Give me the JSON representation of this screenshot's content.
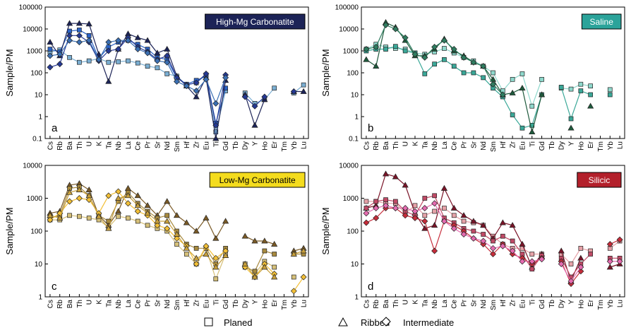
{
  "legend": {
    "items": [
      {
        "label": "Planed",
        "marker": "square"
      },
      {
        "label": "Ribbed",
        "marker": "triangle"
      },
      {
        "label": "Intermediate",
        "marker": "diamond"
      }
    ]
  },
  "chart_data": [
    {
      "type": "line",
      "title": "High-Mg Carbonatite",
      "title_bg": "#1c2357",
      "title_fg": "#ffffff",
      "panel_letter": "a",
      "ylabel": "Sample/PM",
      "yscale": "log",
      "ylim": [
        0.1,
        100000
      ],
      "yticks": [
        "0.1",
        "1",
        "10",
        "100",
        "1000",
        "10000",
        "100000"
      ],
      "categories": [
        "Cs",
        "Rb",
        "Ba",
        "Th",
        "U",
        "K",
        "Ta",
        "Nb",
        "La",
        "Ce",
        "Pr",
        "Sr",
        "Nd",
        "Sm",
        "Hf",
        "Zr",
        "Eu",
        "Ti",
        "Gd",
        "Tb",
        "Dy",
        "Y",
        "Ho",
        "Er",
        "Tm",
        "Yb",
        "Lu"
      ],
      "series": [
        {
          "marker": "square",
          "color": "#7aaed2",
          "values": [
            900,
            1100,
            500,
            300,
            350,
            450,
            300,
            320,
            350,
            280,
            200,
            170,
            90,
            70,
            28,
            35,
            80,
            0.2,
            15,
            null,
            12,
            4,
            6,
            20,
            null,
            12,
            28
          ]
        },
        {
          "marker": "square",
          "color": "#2b63c6",
          "values": [
            1200,
            900,
            8000,
            9000,
            5000,
            450,
            1500,
            2500,
            3000,
            2000,
            1200,
            500,
            400,
            60,
            30,
            45,
            70,
            0.5,
            20,
            null,
            null,
            null,
            null,
            null,
            null,
            null,
            null
          ]
        },
        {
          "marker": "triangle",
          "color": "#1c2357",
          "values": [
            2500,
            600,
            18000,
            18000,
            17000,
            700,
            40,
            1200,
            6000,
            4000,
            3000,
            800,
            1200,
            70,
            25,
            8,
            60,
            0.1,
            45,
            null,
            10,
            0.4,
            6,
            null,
            null,
            14,
            14
          ]
        },
        {
          "marker": "diamond",
          "color": "#253994",
          "values": [
            180,
            250,
            5000,
            5000,
            2500,
            350,
            1000,
            1200,
            4000,
            1500,
            900,
            400,
            600,
            60,
            28,
            35,
            90,
            0.4,
            80,
            null,
            8,
            3,
            8,
            null,
            null,
            14,
            null
          ]
        },
        {
          "marker": "diamond",
          "color": "#3a6fb3",
          "values": [
            600,
            700,
            3000,
            2500,
            3000,
            400,
            2500,
            3000,
            3000,
            1200,
            800,
            350,
            300,
            40,
            25,
            15,
            50,
            4,
            60,
            null,
            null,
            null,
            null,
            null,
            null,
            null,
            null
          ]
        }
      ]
    },
    {
      "type": "line",
      "title": "Saline",
      "title_bg": "#2ba39a",
      "title_fg": "#ffffff",
      "panel_letter": "b",
      "ylabel": "Sample/PM",
      "yscale": "log",
      "ylim": [
        0.1,
        100000
      ],
      "yticks": [
        "0.1",
        "1",
        "10",
        "100",
        "1000",
        "10000",
        "100000"
      ],
      "categories": [
        "Cs",
        "Rb",
        "Ba",
        "Th",
        "U",
        "K",
        "Ta",
        "Nb",
        "La",
        "Ce",
        "Pr",
        "Sr",
        "Nd",
        "Sm",
        "Hf",
        "Zr",
        "Eu",
        "Ti",
        "Gd",
        "Tb",
        "Dy",
        "Y",
        "Ho",
        "Er",
        "Tm",
        "Yb",
        "Lu"
      ],
      "series": [
        {
          "marker": "square",
          "color": "#8ed8cc",
          "values": [
            1200,
            2000,
            1500,
            1300,
            1200,
            800,
            700,
            900,
            1300,
            800,
            500,
            350,
            200,
            100,
            15,
            50,
            90,
            3,
            50,
            null,
            20,
            18,
            30,
            25,
            null,
            17,
            null
          ]
        },
        {
          "marker": "square",
          "color": "#3aa898",
          "values": [
            1000,
            1200,
            1200,
            1600,
            1000,
            800,
            90,
            250,
            400,
            200,
            100,
            100,
            60,
            20,
            8,
            1.2,
            0.3,
            0.4,
            10,
            null,
            22,
            0.8,
            15,
            10,
            null,
            10,
            null
          ]
        },
        {
          "marker": "triangle",
          "color": "#1e5a3c",
          "values": [
            400,
            200,
            20000,
            12000,
            3000,
            600,
            600,
            1200,
            3500,
            1000,
            600,
            300,
            200,
            50,
            10,
            12,
            20,
            0.2,
            10,
            null,
            null,
            0.3,
            null,
            3,
            null,
            null,
            null
          ]
        },
        {
          "marker": "diamond",
          "color": "#2f7d60",
          "values": [
            1200,
            1500,
            15000,
            10000,
            4000,
            700,
            500,
            1500,
            3000,
            1200,
            500,
            300,
            200,
            30,
            10,
            null,
            null,
            null,
            null,
            null,
            null,
            null,
            null,
            null,
            null,
            null,
            null
          ]
        }
      ]
    },
    {
      "type": "line",
      "title": "Low-Mg Carbonatite",
      "title_bg": "#f4dc1e",
      "title_fg": "#000000",
      "panel_letter": "c",
      "ylabel": "Sample/PM",
      "yscale": "log",
      "ylim": [
        1,
        10000
      ],
      "yticks": [
        "1",
        "10",
        "100",
        "1000",
        "10000"
      ],
      "categories": [
        "Cs",
        "Rb",
        "Ba",
        "Th",
        "U",
        "K",
        "Ta",
        "Nb",
        "La",
        "Ce",
        "Pr",
        "Sr",
        "Nd",
        "Sm",
        "Hf",
        "Zr",
        "Eu",
        "Ti",
        "Gd",
        "Tb",
        "Dy",
        "Y",
        "Ho",
        "Er",
        "Tm",
        "Yb",
        "Lu"
      ],
      "series": [
        {
          "marker": "square",
          "color": "#d6c079",
          "values": [
            220,
            220,
            300,
            280,
            250,
            220,
            130,
            280,
            250,
            200,
            150,
            120,
            100,
            40,
            20,
            10,
            30,
            3.5,
            20,
            null,
            10,
            5,
            12,
            8,
            null,
            4,
            null
          ]
        },
        {
          "marker": "triangle",
          "color": "#7a5a26",
          "values": [
            350,
            400,
            2500,
            2800,
            1800,
            300,
            150,
            400,
            2000,
            1200,
            600,
            300,
            800,
            300,
            180,
            100,
            250,
            60,
            200,
            null,
            70,
            50,
            50,
            40,
            null,
            25,
            30
          ]
        },
        {
          "marker": "square",
          "color": "#a88a3e",
          "values": [
            250,
            300,
            2000,
            2200,
            1200,
            300,
            200,
            800,
            1500,
            700,
            400,
            250,
            300,
            100,
            40,
            30,
            30,
            10,
            30,
            null,
            8,
            6,
            25,
            20,
            null,
            20,
            20
          ]
        },
        {
          "marker": "diamond",
          "color": "#f2bf36",
          "values": [
            220,
            350,
            800,
            1000,
            900,
            350,
            1200,
            1600,
            700,
            400,
            300,
            150,
            120,
            60,
            35,
            10,
            35,
            15,
            25,
            null,
            8,
            4,
            10,
            5,
            null,
            1.5,
            4
          ]
        },
        {
          "marker": "triangle",
          "color": "#c8a03c",
          "values": [
            300,
            250,
            1500,
            1800,
            1200,
            280,
            120,
            1000,
            1200,
            600,
            350,
            200,
            200,
            80,
            30,
            15,
            20,
            8,
            18,
            null,
            10,
            4,
            8,
            4,
            null,
            20,
            25
          ]
        }
      ]
    },
    {
      "type": "line",
      "title": "Silicic",
      "title_bg": "#b3202b",
      "title_fg": "#ffffff",
      "panel_letter": "d",
      "ylabel": "Sample/PM",
      "yscale": "log",
      "ylim": [
        1,
        10000
      ],
      "yticks": [
        "1",
        "10",
        "100",
        "1000",
        "10000"
      ],
      "categories": [
        "Cs",
        "Rb",
        "Ba",
        "Th",
        "U",
        "K",
        "Ta",
        "Nb",
        "La",
        "Ce",
        "Pr",
        "Sr",
        "Nd",
        "Sm",
        "Hf",
        "Zr",
        "Eu",
        "Ti",
        "Gd",
        "Tb",
        "Dy",
        "Y",
        "Ho",
        "Er",
        "Tm",
        "Yb",
        "Lu"
      ],
      "series": [
        {
          "marker": "square",
          "color": "#e6a2a8",
          "values": [
            800,
            800,
            700,
            700,
            350,
            600,
            300,
            400,
            500,
            300,
            200,
            180,
            150,
            70,
            40,
            30,
            30,
            20,
            20,
            null,
            20,
            10,
            30,
            25,
            null,
            30,
            50
          ]
        },
        {
          "marker": "triangle",
          "color": "#7a1428",
          "values": [
            500,
            600,
            5500,
            4500,
            2500,
            350,
            120,
            150,
            2000,
            500,
            300,
            200,
            150,
            60,
            180,
            150,
            40,
            8,
            20,
            null,
            25,
            3,
            15,
            null,
            null,
            8,
            10
          ]
        },
        {
          "marker": "square",
          "color": "#c04a66",
          "values": [
            500,
            800,
            900,
            800,
            400,
            300,
            1000,
            1200,
            250,
            180,
            120,
            100,
            80,
            50,
            70,
            50,
            20,
            7,
            18,
            null,
            15,
            4,
            10,
            20,
            null,
            15,
            15
          ]
        },
        {
          "marker": "diamond",
          "color": "#c62c3a",
          "values": [
            180,
            250,
            500,
            500,
            300,
            250,
            200,
            25,
            200,
            150,
            100,
            60,
            40,
            20,
            40,
            20,
            15,
            10,
            15,
            null,
            12,
            2.5,
            6,
            null,
            null,
            40,
            55
          ]
        },
        {
          "marker": "diamond",
          "color": "#e56bb0",
          "values": [
            350,
            500,
            600,
            500,
            500,
            400,
            500,
            700,
            200,
            120,
            80,
            60,
            50,
            30,
            35,
            25,
            12,
            12,
            14,
            null,
            10,
            3,
            8,
            null,
            null,
            12,
            12
          ]
        }
      ]
    }
  ]
}
